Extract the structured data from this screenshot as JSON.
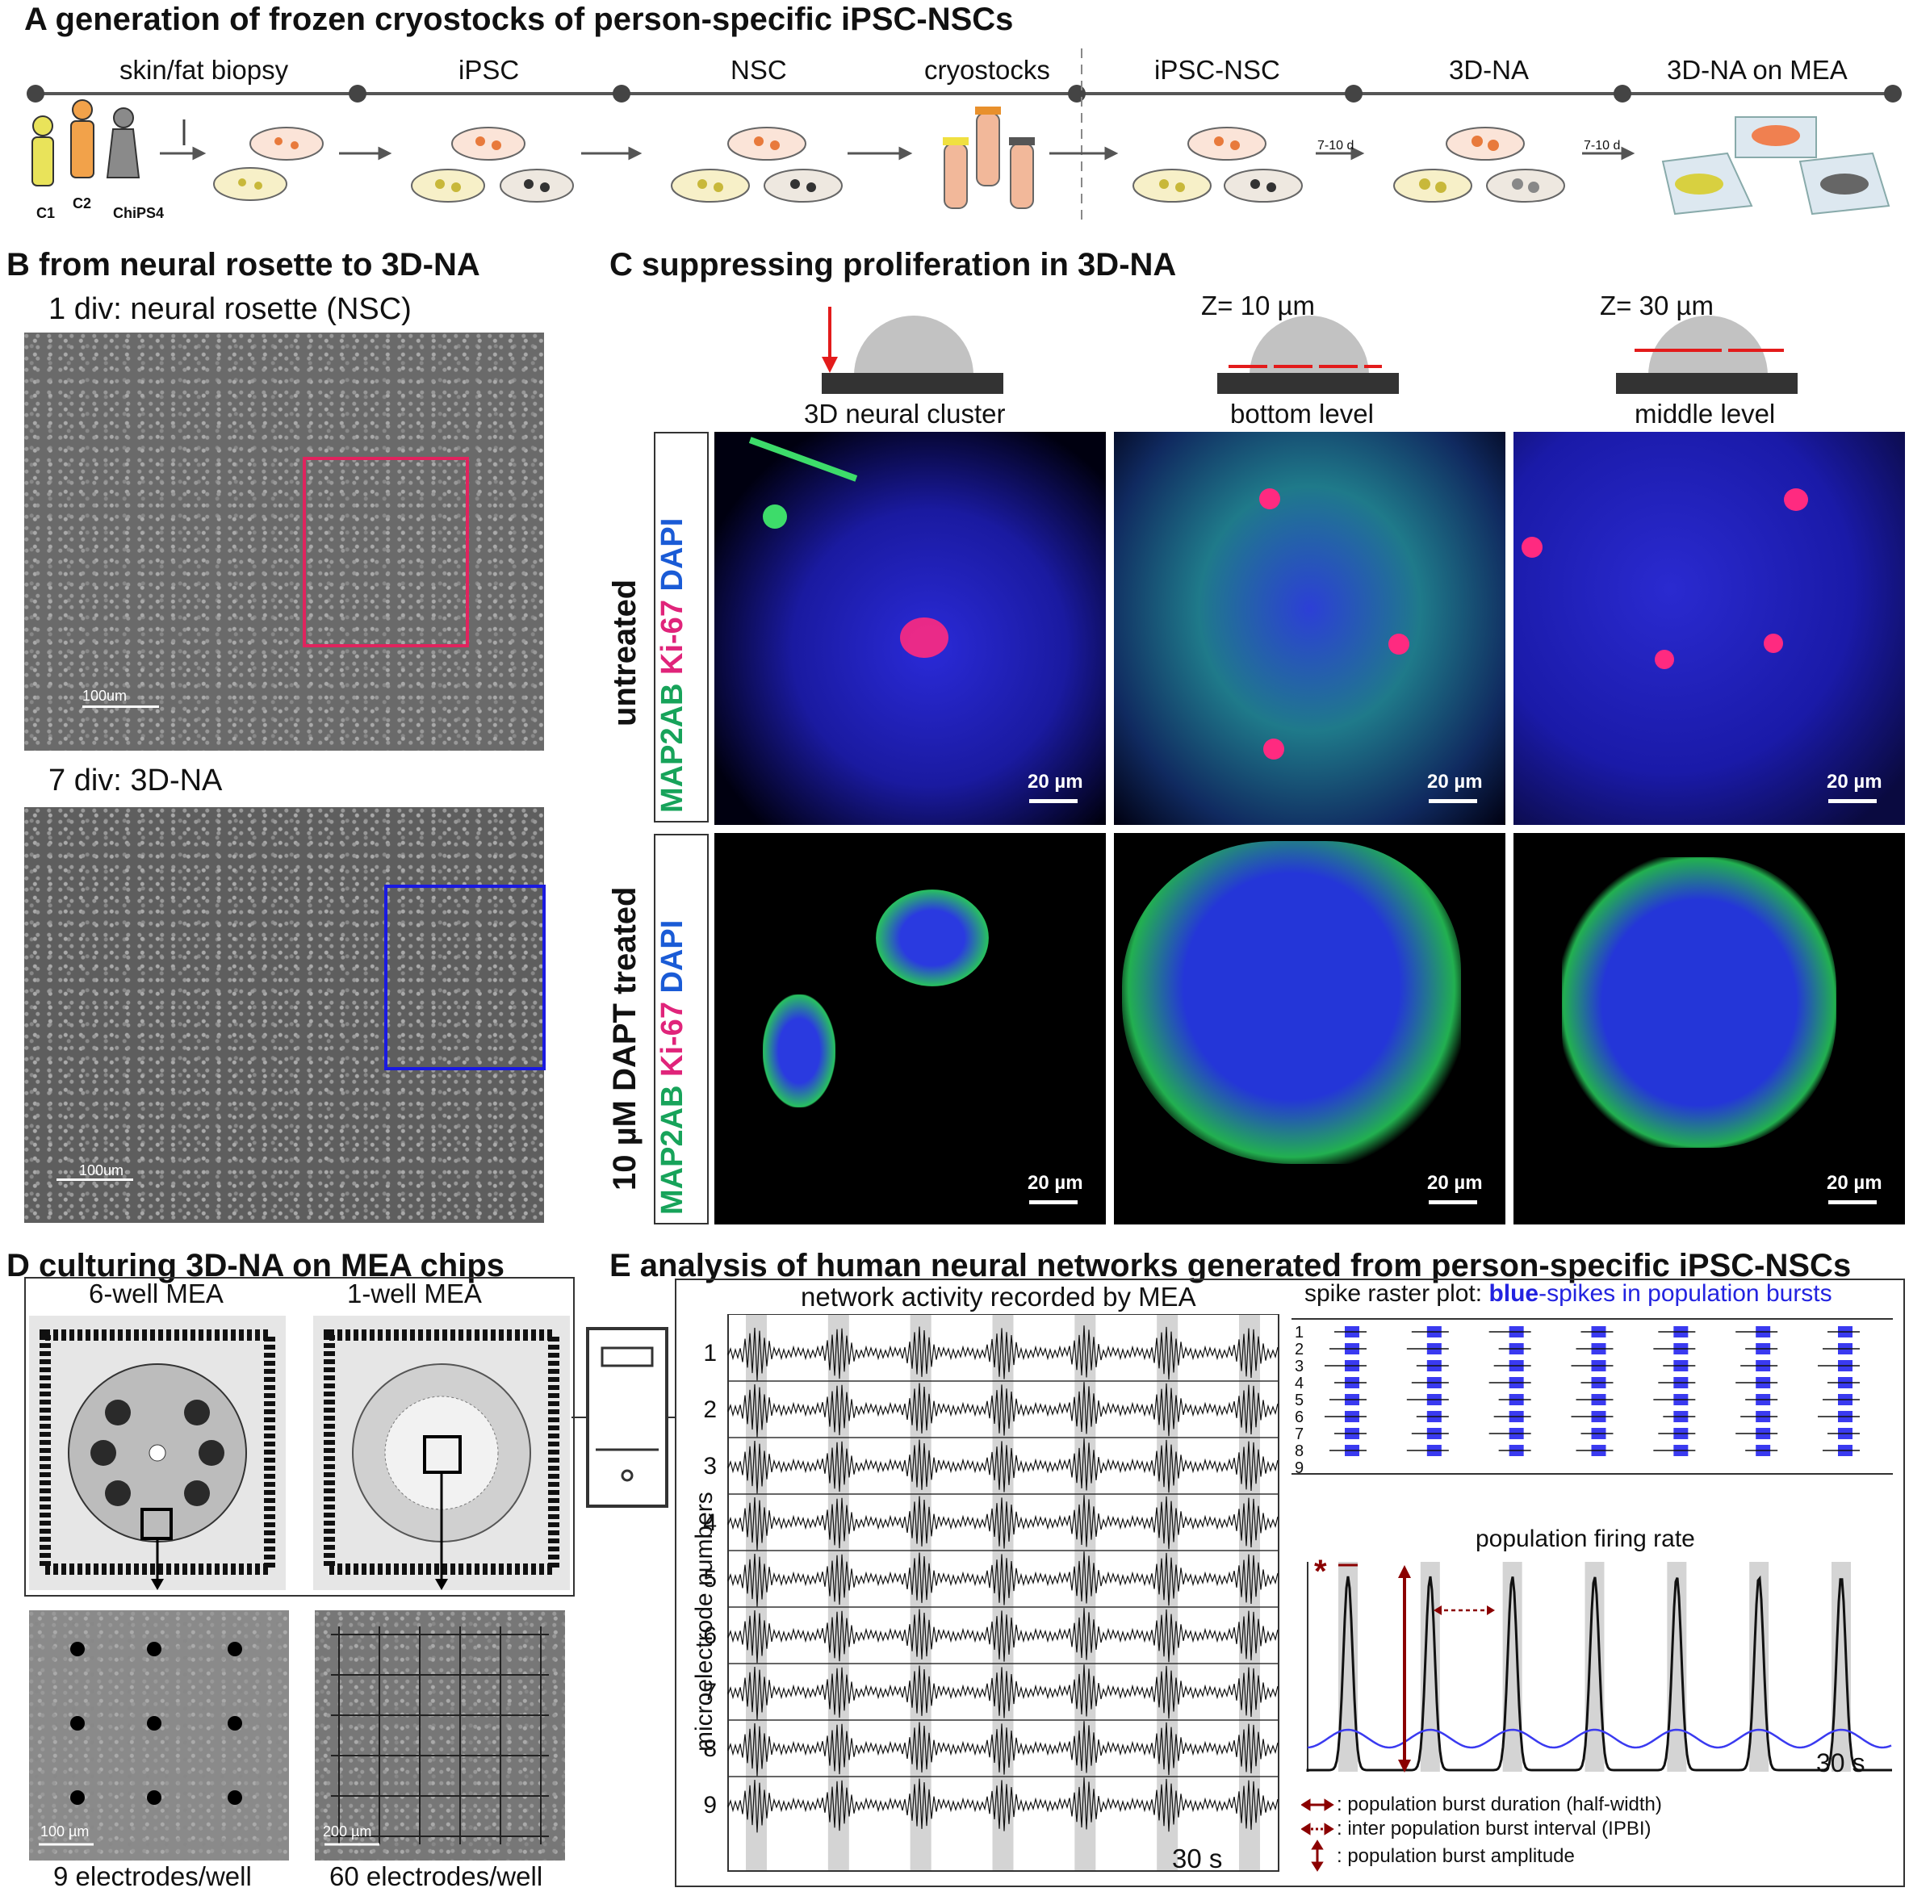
{
  "panelA": {
    "title": "A  generation of frozen cryostocks of person-specific iPSC-NSCs",
    "stages": [
      "skin/fat biopsy",
      "iPSC",
      "NSC",
      "cryostocks",
      "iPSC-NSC",
      "3D-NA",
      "3D-NA on MEA"
    ],
    "people": [
      "C1",
      "C2",
      "ChiPS4"
    ],
    "arrow_days_1": "7-10 d",
    "arrow_days_2": "7-10 d"
  },
  "panelB": {
    "title": "B  from neural rosette to 3D-NA",
    "label_top": "1 div: neural rosette (NSC)",
    "label_bottom": "7 div: 3D-NA",
    "scale_top": "100um",
    "scale_bottom": "100um"
  },
  "panelC": {
    "title": "C  suppressing proliferation in 3D-NA",
    "z1": "Z= 10 µm",
    "z2": "Z= 30 µm",
    "col_labels": [
      "3D neural cluster",
      "bottom level",
      "middle level"
    ],
    "row1_label": "untreated",
    "row2_label": "10 µM DAPT treated",
    "stain_map2ab": "MAP2AB",
    "stain_ki67": "Ki-67",
    "stain_dapi": "DAPI",
    "scale": "20 µm"
  },
  "panelD": {
    "title": "D  culturing 3D-NA on MEA chips",
    "mea1": "6-well MEA",
    "mea2": "1-well MEA",
    "scale1": "100 µm",
    "scale2": "200 µm",
    "caption1": "9 electrodes/well",
    "caption2": "60 electrodes/well"
  },
  "panelE": {
    "title": "E  analysis of human neural networks generated from person-specific iPSC-NSCs",
    "traces_title": "network activity recorded by MEA",
    "ylabel": "microelectrode numbers",
    "electrodes": [
      "1",
      "2",
      "3",
      "4",
      "5",
      "6",
      "7",
      "8",
      "9"
    ],
    "time_label": "30 s",
    "raster_title_prefix": "spike raster plot: ",
    "raster_title_blue": "blue",
    "raster_title_suffix": "-spikes in population bursts",
    "rate_title": "population firing rate",
    "rate_time_label": "30 s",
    "asterisk": "*",
    "legend": [
      ": population burst duration (half-width)",
      ": inter population burst interval (IPBI)",
      ": population burst amplitude"
    ],
    "colors": {
      "burst_blue": "#3a3af0",
      "dark_red": "#8b0000",
      "shade": "#d4d4d4"
    }
  }
}
